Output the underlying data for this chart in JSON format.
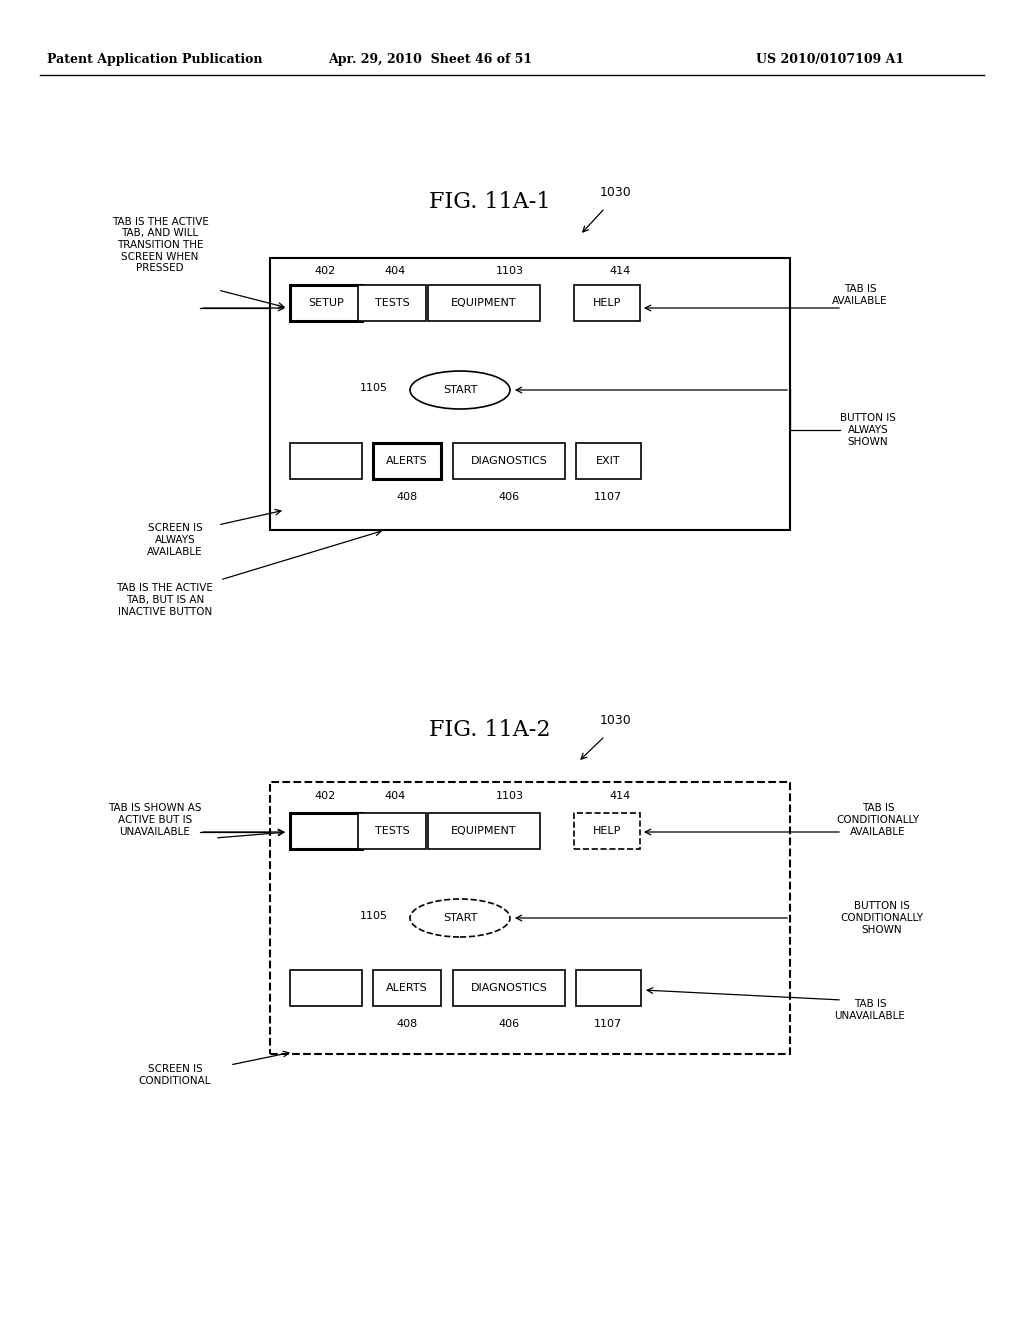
{
  "bg_color": "#ffffff",
  "header_left": "Patent Application Publication",
  "header_mid": "Apr. 29, 2010  Sheet 46 of 51",
  "header_right": "US 2010/0107109 A1",
  "fig1_title": "FIG. 11A-1",
  "fig2_title": "FIG. 11A-2",
  "label_1030": "1030",
  "label_1105": "1105",
  "top_labels_1": [
    "402",
    "404",
    "1103",
    "414"
  ],
  "top_labels_2": [
    "402",
    "404",
    "1103",
    "414"
  ],
  "bot_labels_1": [
    "408",
    "406",
    "1107"
  ],
  "bot_labels_2": [
    "408",
    "406",
    "1107"
  ]
}
